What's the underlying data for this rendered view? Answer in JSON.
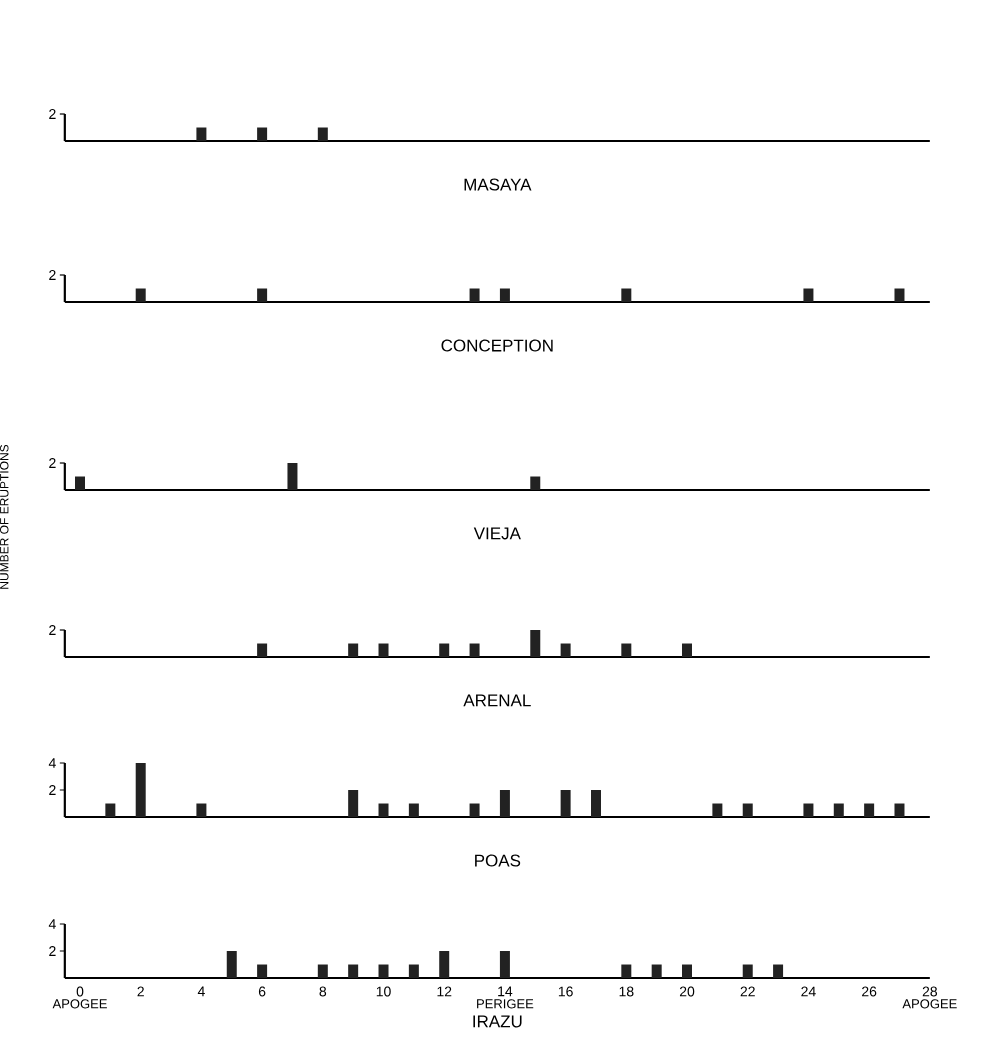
{
  "chart_data": [
    {
      "type": "bar",
      "title": "MASAYA",
      "x": [
        4,
        6,
        8
      ],
      "values": [
        1,
        1,
        1
      ],
      "color": "#222222",
      "xlim": [
        -0.5,
        28
      ],
      "ylim": [
        0,
        2
      ],
      "yticks": [
        2
      ],
      "tick_labels": "y"
    },
    {
      "type": "bar",
      "title": "CONCEPTION",
      "x": [
        2,
        6,
        13,
        14,
        18,
        24,
        27
      ],
      "values": [
        1,
        1,
        1,
        1,
        1,
        1,
        1
      ],
      "color": "#222222",
      "xlim": [
        -0.5,
        28
      ],
      "ylim": [
        0,
        2
      ],
      "yticks": [
        2
      ],
      "tick_labels": "y"
    },
    {
      "type": "bar",
      "title": "VIEJA",
      "ylabel": "NUMBER OF ERUPTIONS",
      "x": [
        0,
        7,
        15
      ],
      "values": [
        1,
        2,
        1
      ],
      "color": "#222222",
      "xlim": [
        -0.5,
        28
      ],
      "ylim": [
        0,
        2
      ],
      "yticks": [
        2
      ],
      "tick_labels": "y"
    },
    {
      "type": "bar",
      "title": "ARENAL",
      "x": [
        6,
        9,
        10,
        12,
        13,
        15,
        16,
        18,
        20
      ],
      "values": [
        1,
        1,
        1,
        1,
        1,
        2,
        1,
        1,
        1
      ],
      "color": "#222222",
      "xlim": [
        -0.5,
        28
      ],
      "ylim": [
        0,
        2
      ],
      "yticks": [
        2
      ],
      "tick_labels": "y"
    },
    {
      "type": "bar",
      "title": "POAS",
      "x": [
        1,
        2,
        4,
        9,
        10,
        11,
        13,
        14,
        16,
        17,
        21,
        22,
        24,
        25,
        26,
        27
      ],
      "values": [
        1,
        4,
        1,
        2,
        1,
        1,
        1,
        2,
        2,
        2,
        1,
        1,
        1,
        1,
        1,
        1
      ],
      "color": "#222222",
      "xlim": [
        -0.5,
        28
      ],
      "ylim": [
        0,
        4
      ],
      "yticks": [
        2,
        4
      ],
      "tick_labels": "y"
    },
    {
      "type": "bar",
      "title": "IRAZU",
      "x": [
        5,
        6,
        8,
        9,
        10,
        11,
        12,
        14,
        18,
        19,
        20,
        22,
        23
      ],
      "values": [
        2,
        1,
        1,
        1,
        1,
        1,
        2,
        2,
        1,
        1,
        1,
        1,
        1
      ],
      "color": "#222222",
      "xlim": [
        -0.5,
        28
      ],
      "ylim": [
        0,
        4
      ],
      "yticks": [
        2,
        4
      ],
      "xticks": [
        0,
        2,
        4,
        6,
        8,
        10,
        12,
        14,
        16,
        18,
        20,
        22,
        24,
        26,
        28
      ],
      "annotations": [
        "APOGEE",
        "PERIGEE",
        "APOGEE"
      ]
    }
  ]
}
